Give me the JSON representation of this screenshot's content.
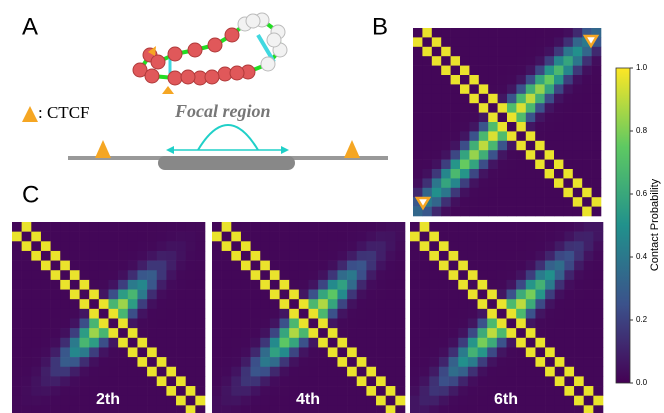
{
  "panel_labels": {
    "a": "A",
    "b": "B",
    "c": "C"
  },
  "legend": {
    "ctcf": ": CTCF"
  },
  "focal_region": "Focal region",
  "heatmap_labels": [
    "2th",
    "4th",
    "6th"
  ],
  "colorbar": {
    "label": "Contact Probability",
    "lim": [
      0,
      1
    ],
    "ticks": [
      {
        "value": 0,
        "label": "0.0"
      },
      {
        "value": 0.2,
        "label": "0.2"
      },
      {
        "value": 0.4,
        "label": "0.4"
      },
      {
        "value": 0.6,
        "label": "0.6"
      },
      {
        "value": 0.8,
        "label": "0.8"
      },
      {
        "value": 1,
        "label": "1.0"
      }
    ]
  }
}
